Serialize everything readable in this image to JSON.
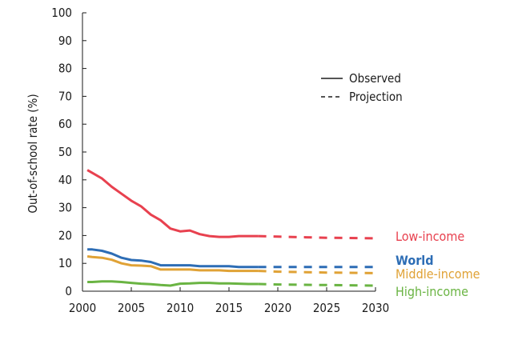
{
  "chart_data": {
    "type": "line",
    "ylabel": "Out-of-school rate (%)",
    "xlim": [
      2000,
      2030
    ],
    "ylim": [
      0,
      100
    ],
    "xticks": [
      "2000",
      "2005",
      "2010",
      "2015",
      "2020",
      "2025",
      "2030"
    ],
    "yticks": [
      "0",
      "10",
      "20",
      "30",
      "40",
      "50",
      "60",
      "70",
      "80",
      "90",
      "100"
    ],
    "legend": {
      "placement": "top-right",
      "entries": [
        {
          "label": "Observed",
          "style": "solid"
        },
        {
          "label": "Projection",
          "style": "dashed"
        }
      ]
    },
    "series": [
      {
        "name": "Low-income",
        "color": "#e8414f",
        "observed": {
          "x": [
            2000.5,
            2001,
            2002,
            2003,
            2004,
            2005,
            2006,
            2007,
            2008,
            2009,
            2010,
            2011,
            2012,
            2013,
            2014,
            2015,
            2016,
            2017,
            2018
          ],
          "y": [
            43.5,
            42.5,
            40.5,
            37.5,
            35,
            32.5,
            30.5,
            27.5,
            25.5,
            22.5,
            21.5,
            21.8,
            20.5,
            19.8,
            19.5,
            19.5,
            19.8,
            19.8,
            19.8
          ]
        },
        "projection": {
          "x": [
            2018,
            2020,
            2025,
            2030
          ],
          "y": [
            19.8,
            19.6,
            19.2,
            19.0
          ]
        }
      },
      {
        "name": "World",
        "color": "#2d6db5",
        "observed": {
          "x": [
            2000.5,
            2001,
            2002,
            2003,
            2004,
            2005,
            2006,
            2007,
            2008,
            2009,
            2010,
            2011,
            2012,
            2013,
            2014,
            2015,
            2016,
            2017,
            2018
          ],
          "y": [
            15,
            15,
            14.5,
            13.5,
            12,
            11.2,
            11,
            10.5,
            9.3,
            9.3,
            9.3,
            9.3,
            9.0,
            9.0,
            9.0,
            9.0,
            8.7,
            8.7,
            8.7
          ]
        },
        "projection": {
          "x": [
            2018,
            2020,
            2025,
            2030
          ],
          "y": [
            8.7,
            8.7,
            8.7,
            8.7
          ]
        }
      },
      {
        "name": "Middle-income",
        "color": "#e0a236",
        "observed": {
          "x": [
            2000.5,
            2001,
            2002,
            2003,
            2004,
            2005,
            2006,
            2007,
            2008,
            2009,
            2010,
            2011,
            2012,
            2013,
            2014,
            2015,
            2016,
            2017,
            2018
          ],
          "y": [
            12.5,
            12.3,
            12,
            11.3,
            10,
            9.3,
            9.2,
            9.0,
            7.8,
            7.8,
            7.8,
            7.8,
            7.5,
            7.5,
            7.5,
            7.3,
            7.3,
            7.3,
            7.3
          ]
        },
        "projection": {
          "x": [
            2018,
            2020,
            2025,
            2030
          ],
          "y": [
            7.3,
            7.0,
            6.7,
            6.5
          ]
        }
      },
      {
        "name": "High-income",
        "color": "#6ab443",
        "observed": {
          "x": [
            2000.5,
            2001,
            2002,
            2003,
            2004,
            2005,
            2006,
            2007,
            2008,
            2009,
            2010,
            2011,
            2012,
            2013,
            2014,
            2015,
            2016,
            2017,
            2018
          ],
          "y": [
            3.3,
            3.3,
            3.5,
            3.5,
            3.3,
            3.0,
            2.7,
            2.5,
            2.2,
            2.0,
            2.7,
            2.8,
            3.0,
            3.0,
            2.8,
            2.8,
            2.7,
            2.6,
            2.6
          ]
        },
        "projection": {
          "x": [
            2018,
            2020,
            2025,
            2030
          ],
          "y": [
            2.6,
            2.4,
            2.2,
            2.0
          ]
        }
      }
    ]
  }
}
